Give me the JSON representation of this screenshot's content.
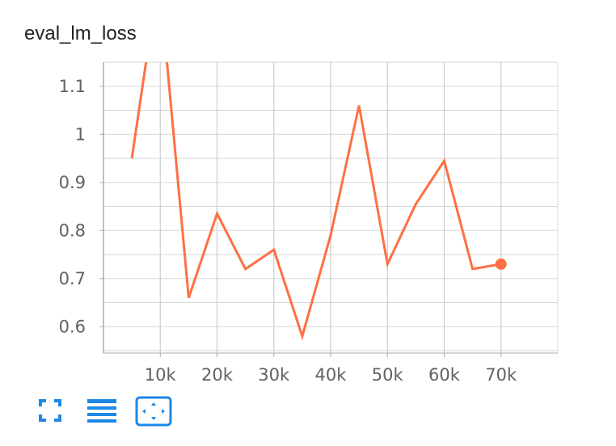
{
  "chart_data": {
    "type": "line",
    "title": "eval_lm_loss",
    "x_tick_labels": [
      "10k",
      "20k",
      "30k",
      "40k",
      "50k",
      "60k",
      "70k"
    ],
    "x_ticks": [
      10000,
      20000,
      30000,
      40000,
      50000,
      60000,
      70000
    ],
    "y_tick_labels": [
      "0.6",
      "0.7",
      "0.8",
      "0.9",
      "1",
      "1.1"
    ],
    "y_ticks": [
      0.6,
      0.7,
      0.8,
      0.9,
      1.0,
      1.1
    ],
    "xlim": [
      0,
      80000
    ],
    "ylim": [
      0.545,
      1.15
    ],
    "grid": true,
    "color": "#ff7043",
    "series": [
      {
        "x": [
          5000,
          7500,
          10000,
          15000,
          20000,
          25000,
          30000,
          35000,
          40000,
          45000,
          50000,
          55000,
          60000,
          65000,
          70000
        ],
        "y": [
          0.95,
          1.15,
          1.3,
          0.66,
          0.835,
          0.72,
          0.76,
          0.58,
          0.79,
          1.06,
          0.73,
          0.855,
          0.945,
          0.72,
          0.73
        ]
      }
    ]
  },
  "toolbar": {
    "fullscreen_icon": "fullscreen-icon",
    "data_icon": "table-icon",
    "fit_icon": "fit-domain-icon",
    "icon_color": "#1e88e5"
  }
}
